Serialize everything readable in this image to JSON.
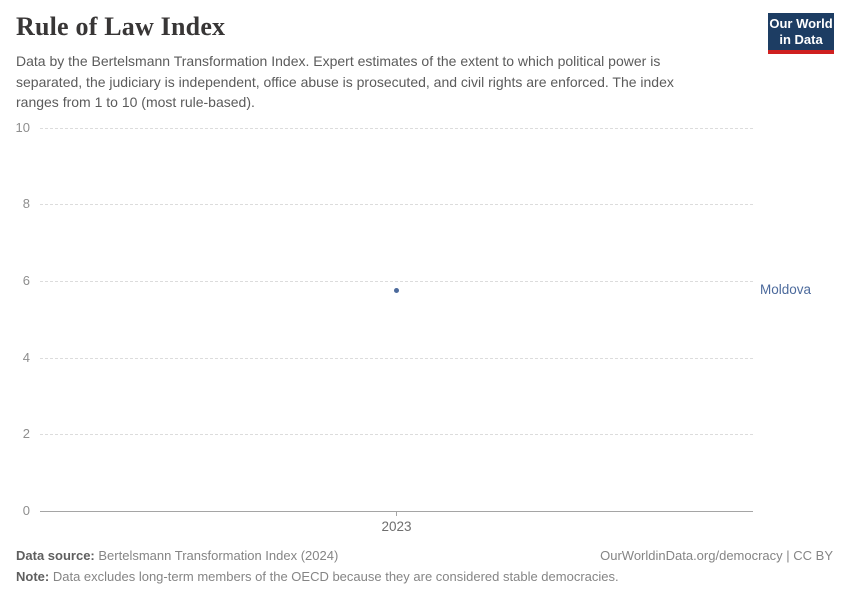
{
  "header": {
    "title": "Rule of Law Index",
    "subtitle": "Data by the Bertelsmann Transformation Index. Expert estimates of the extent to which political power is separated, the judiciary is independent, office abuse is prosecuted, and civil rights are enforced. The index ranges from 1 to 10 (most rule-based).",
    "logo": {
      "line1": "Our World",
      "line2": "in Data"
    }
  },
  "chart_data": {
    "type": "scatter",
    "title": "Rule of Law Index",
    "x": [
      2023
    ],
    "xticks": [
      "2023"
    ],
    "yticks": [
      0,
      2,
      4,
      6,
      8,
      10
    ],
    "ylim": [
      0,
      10
    ],
    "xlabel": "",
    "ylabel": "",
    "grid": "horizontal-dashed",
    "legend_position": "entity label right of plot",
    "series": [
      {
        "name": "Moldova",
        "x": [
          2023
        ],
        "values": [
          5.75
        ],
        "color": "#4c6a9c"
      }
    ]
  },
  "footer": {
    "source_label": "Data source:",
    "source_text": "Bertelsmann Transformation Index (2024)",
    "credit": "OurWorldinData.org/democracy | CC BY",
    "note_label": "Note:",
    "note_text": "Data excludes long-term members of the OECD because they are considered stable democracies."
  },
  "colors": {
    "series_accent": "#4c6a9c",
    "logo_bg": "#1d3d63",
    "logo_accent": "#cf2020",
    "title_text": "#383636",
    "subtitle_text": "#5b5b5b",
    "axis_text": "#8e8e8e",
    "gridline": "#dcdcdc",
    "axis_line": "#a5a5a5"
  }
}
